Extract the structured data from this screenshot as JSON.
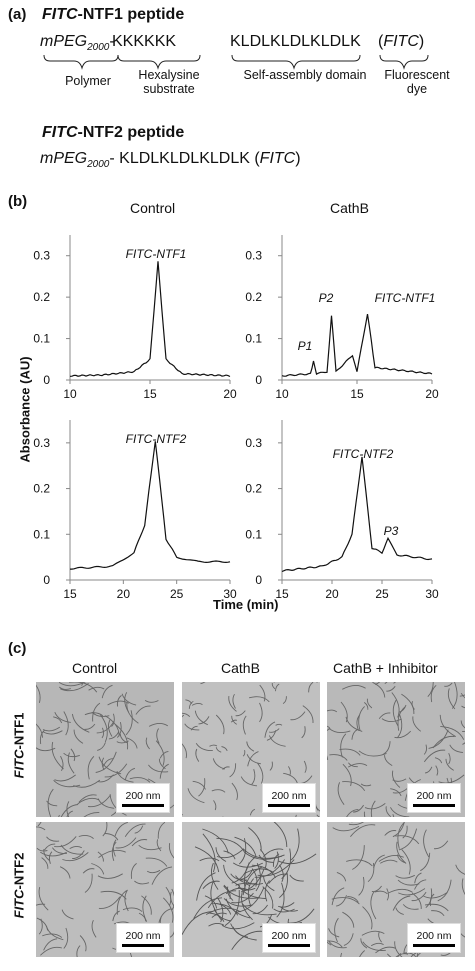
{
  "panel_a": {
    "label": "(a)",
    "ntf1_title_italic": "FITC",
    "ntf1_title_rest": "-NTF1 peptide",
    "ntf1_seq": {
      "polymer": "mPEG",
      "polymer_sub": "2000",
      "dash": "-",
      "hexalysine": "KKKKKK",
      "self_assembly": "KLDLKLDLKLDLK",
      "dye_open": "(",
      "dye": "FITC",
      "dye_close": ")"
    },
    "brace_labels": {
      "polymer": "Polymer",
      "hexalysine_l1": "Hexalysine",
      "hexalysine_l2": "substrate",
      "self_assembly": "Self-assembly domain",
      "dye_l1": "Fluorescent",
      "dye_l2": "dye"
    },
    "ntf2_title_italic": "FITC",
    "ntf2_title_rest": "-NTF2 peptide",
    "ntf2_seq": {
      "polymer": "mPEG",
      "polymer_sub": "2000",
      "rest": "- KLDLKLDLKLDLK (",
      "dye": "FITC",
      "dye_close": ")"
    }
  },
  "panel_b": {
    "label": "(b)",
    "columns": [
      "Control",
      "CathB"
    ],
    "ylabel": "Absorbance (AU)",
    "xlabel": "Time (min)",
    "y_ticks": [
      "0.3",
      "0.2",
      "0.1",
      "0"
    ],
    "top_x_ticks": [
      "10",
      "15",
      "20"
    ],
    "bottom_x_ticks": [
      "15",
      "20",
      "25",
      "30"
    ],
    "peak_labels": {
      "top_left": "FITC-NTF1",
      "top_right_p1": "P1",
      "top_right_p2": "P2",
      "top_right_main": "FITC-NTF1",
      "bottom_left": "FITC-NTF2",
      "bottom_right_main": "FITC-NTF2",
      "bottom_right_p3": "P3"
    }
  },
  "chart_data": [
    {
      "type": "line",
      "title": "Control",
      "series": [
        {
          "values": [
            [
              10,
              0.01
            ],
            [
              12,
              0.012
            ],
            [
              14,
              0.02
            ],
            [
              15,
              0.05
            ],
            [
              15.5,
              0.285
            ],
            [
              16,
              0.05
            ],
            [
              17,
              0.015
            ],
            [
              20,
              0.01
            ]
          ]
        }
      ],
      "xlabel": "Time (min)",
      "ylabel": "Absorbance (AU)",
      "xlim": [
        10,
        20
      ],
      "ylim": [
        0,
        0.35
      ]
    },
    {
      "type": "line",
      "title": "CathB",
      "series": [
        {
          "values": [
            [
              10,
              0.01
            ],
            [
              11.9,
              0.015
            ],
            [
              12.1,
              0.045
            ],
            [
              12.3,
              0.015
            ],
            [
              13,
              0.02
            ],
            [
              13.3,
              0.155
            ],
            [
              13.6,
              0.02
            ],
            [
              14.7,
              0.06
            ],
            [
              15,
              0.02
            ],
            [
              15.7,
              0.16
            ],
            [
              16.2,
              0.03
            ],
            [
              17.5,
              0.025
            ],
            [
              20,
              0.015
            ]
          ]
        }
      ],
      "xlabel": "Time (min)",
      "ylabel": "Absorbance (AU)",
      "xlim": [
        10,
        20
      ],
      "ylim": [
        0,
        0.35
      ]
    },
    {
      "type": "line",
      "series": [
        {
          "values": [
            [
              15,
              0.025
            ],
            [
              19,
              0.03
            ],
            [
              21,
              0.06
            ],
            [
              22,
              0.12
            ],
            [
              23,
              0.305
            ],
            [
              24,
              0.09
            ],
            [
              25,
              0.05
            ],
            [
              27,
              0.04
            ],
            [
              30,
              0.04
            ]
          ]
        }
      ],
      "xlabel": "Time (min)",
      "ylabel": "Absorbance (AU)",
      "xlim": [
        15,
        30
      ],
      "ylim": [
        0,
        0.35
      ]
    },
    {
      "type": "line",
      "series": [
        {
          "values": [
            [
              15,
              0.02
            ],
            [
              19,
              0.03
            ],
            [
              21,
              0.05
            ],
            [
              22,
              0.1
            ],
            [
              23,
              0.27
            ],
            [
              24,
              0.07
            ],
            [
              25,
              0.06
            ],
            [
              25.6,
              0.09
            ],
            [
              26.5,
              0.055
            ],
            [
              30,
              0.045
            ]
          ]
        }
      ],
      "xlabel": "Time (min)",
      "ylabel": "Absorbance (AU)",
      "xlim": [
        15,
        30
      ],
      "ylim": [
        0,
        0.35
      ]
    }
  ],
  "panel_c": {
    "label": "(c)",
    "columns": [
      "Control",
      "CathB",
      "CathB + Inhibitor"
    ],
    "rows": [
      {
        "italic": "FITC",
        "rest": "-NTF1"
      },
      {
        "italic": "FITC",
        "rest": "-NTF2"
      }
    ],
    "scale_bar": "200 nm"
  }
}
